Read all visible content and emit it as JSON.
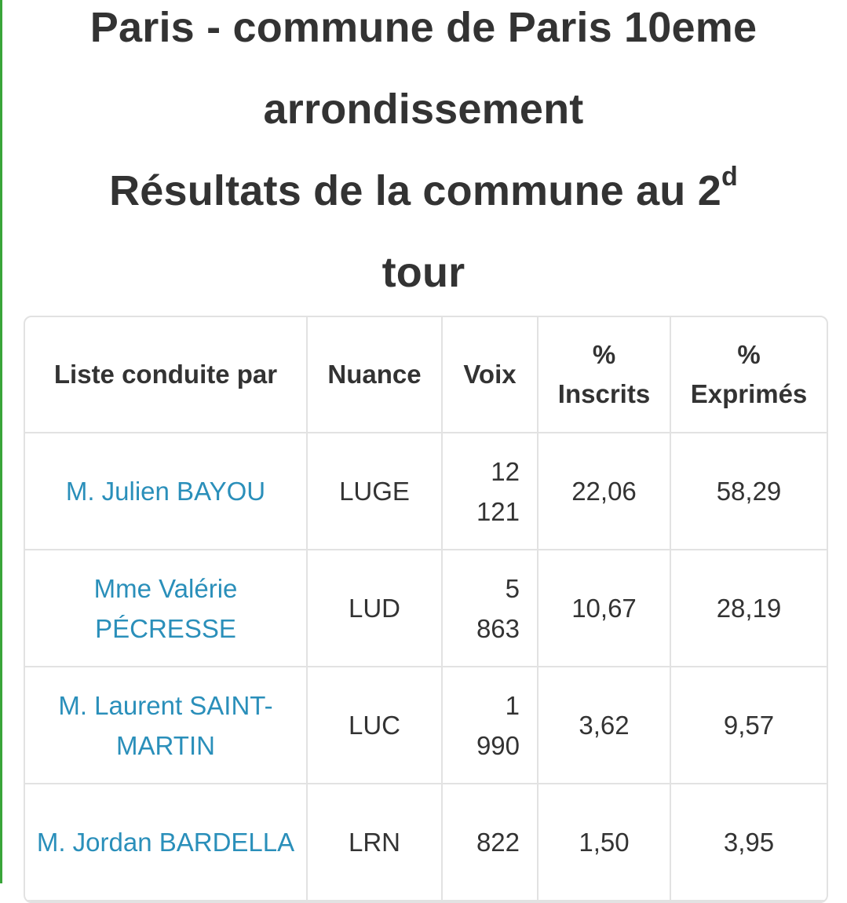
{
  "title": {
    "line1": "Paris - commune de Paris 10eme",
    "line2": "arrondissement",
    "line3_main": "Résultats de la commune au 2",
    "line3_sup": "d",
    "line4": "tour"
  },
  "table": {
    "headers": {
      "liste": "Liste conduite par",
      "nuance": "Nuance",
      "voix": "Voix",
      "inscrits_pct": "%",
      "inscrits": "Inscrits",
      "exprimes_pct": "%",
      "exprimes": "Exprimés"
    },
    "rows": [
      {
        "candidate": "M. Julien BAYOU",
        "nuance": "LUGE",
        "voix": "12 121",
        "inscrits": "22,06",
        "exprimes": "58,29"
      },
      {
        "candidate": "Mme Valérie PÉCRESSE",
        "nuance": "LUD",
        "voix": "5 863",
        "inscrits": "10,67",
        "exprimes": "28,19"
      },
      {
        "candidate": "M. Laurent SAINT-MARTIN",
        "nuance": "LUC",
        "voix": "1 990",
        "inscrits": "3,62",
        "exprimes": "9,57"
      },
      {
        "candidate": "M. Jordan BARDELLA",
        "nuance": "LRN",
        "voix": "822",
        "inscrits": "1,50",
        "exprimes": "3,95"
      }
    ]
  },
  "colors": {
    "accent_green": "#3aa53a",
    "link_blue": "#2a8fba",
    "text_dark": "#333333",
    "border_gray": "#e2e2e2"
  }
}
